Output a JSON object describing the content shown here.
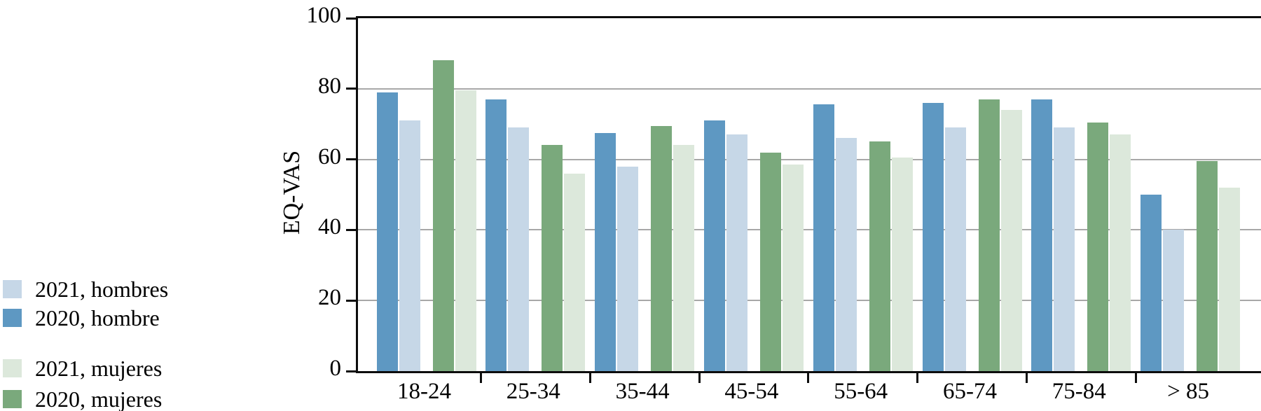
{
  "chart_data": {
    "type": "bar",
    "title": "",
    "xlabel": "",
    "ylabel": "EQ-VAS",
    "ylim": [
      0,
      100
    ],
    "yticks": [
      0,
      20,
      40,
      60,
      80,
      100
    ],
    "grid": "horizontal-lines-at-20-40-60-80",
    "legend_position": "left-outside",
    "categories": [
      "18-24",
      "25-34",
      "35-44",
      "45-54",
      "55-64",
      "65-74",
      "75-84",
      "> 85"
    ],
    "series": [
      {
        "name": "2020, hombre",
        "color": "#5e98c2",
        "values": [
          79,
          77,
          67.5,
          71,
          75.5,
          76,
          77,
          50
        ]
      },
      {
        "name": "2021, hombres",
        "color": "#c6d7e7",
        "values": [
          71,
          69,
          58,
          67,
          66,
          69,
          69,
          40
        ]
      },
      {
        "name": "2020, mujeres",
        "color": "#7aa97c",
        "values": [
          88,
          64,
          69.5,
          62,
          65,
          77,
          70.5,
          59.5
        ]
      },
      {
        "name": "2021, mujeres",
        "color": "#dce8db",
        "values": [
          79.5,
          56,
          64,
          58.5,
          60.5,
          74,
          67,
          52
        ]
      }
    ]
  },
  "legend": {
    "items": [
      {
        "label": "2021, hombres",
        "color": "#c6d7e7",
        "group": "hombres"
      },
      {
        "label": "2020, hombre",
        "color": "#5e98c2",
        "group": "hombres"
      },
      {
        "label": "2021, mujeres",
        "color": "#dce8db",
        "group": "mujeres"
      },
      {
        "label": "2020, mujeres",
        "color": "#7aa97c",
        "group": "mujeres"
      }
    ]
  },
  "colors": {
    "axis": "#0d0d0d",
    "gridline": "#a8a8a8",
    "background": "#ffffff"
  }
}
